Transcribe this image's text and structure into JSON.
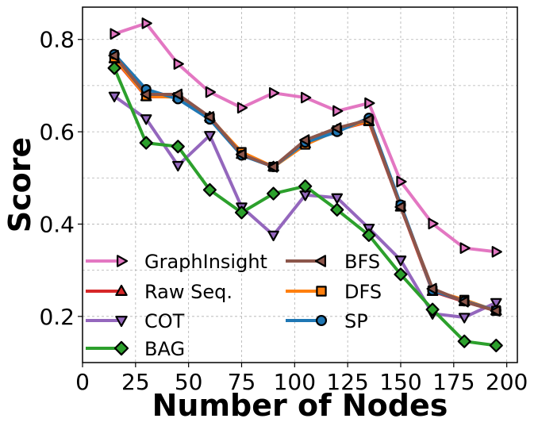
{
  "chart_data": {
    "type": "line",
    "xlabel": "Number of Nodes",
    "ylabel": "Score",
    "xlim": [
      0,
      205
    ],
    "ylim": [
      0.1,
      0.87
    ],
    "xticks": [
      0,
      25,
      50,
      75,
      100,
      125,
      150,
      175,
      200
    ],
    "yticks": [
      0.2,
      0.4,
      0.6,
      0.8
    ],
    "grid": true,
    "legend_position": "bottom-left, two columns",
    "x": [
      15,
      30,
      45,
      60,
      75,
      90,
      105,
      120,
      135,
      150,
      165,
      180,
      195
    ],
    "series": [
      {
        "name": "GraphInsight",
        "color": "#e377c2",
        "marker": "triangle-right",
        "values": [
          0.812,
          0.835,
          0.747,
          0.686,
          0.652,
          0.684,
          0.674,
          0.645,
          0.662,
          0.492,
          0.401,
          0.348,
          0.34
        ]
      },
      {
        "name": "Raw Seq.",
        "color": "#d62728",
        "marker": "triangle-up",
        "values": [
          0.758,
          0.676,
          0.676,
          0.632,
          0.551,
          0.524,
          0.574,
          0.604,
          0.622,
          0.437,
          0.254,
          0.232,
          0.212
        ]
      },
      {
        "name": "COT",
        "color": "#9467bd",
        "marker": "triangle-down",
        "values": [
          0.677,
          0.628,
          0.527,
          0.592,
          0.437,
          0.376,
          0.463,
          0.457,
          0.391,
          0.322,
          0.206,
          0.198,
          0.23
        ]
      },
      {
        "name": "BAG",
        "color": "#2ca02c",
        "marker": "diamond",
        "values": [
          0.738,
          0.576,
          0.568,
          0.474,
          0.425,
          0.466,
          0.482,
          0.431,
          0.376,
          0.291,
          0.215,
          0.146,
          0.137
        ]
      },
      {
        "name": "BFS",
        "color": "#8c564b",
        "marker": "triangle-left",
        "values": [
          0.765,
          0.681,
          0.681,
          0.632,
          0.551,
          0.524,
          0.582,
          0.608,
          0.626,
          0.437,
          0.26,
          0.232,
          0.212
        ]
      },
      {
        "name": "DFS",
        "color": "#ff7f0e",
        "marker": "square",
        "values": [
          0.76,
          0.677,
          0.675,
          0.63,
          0.556,
          0.524,
          0.572,
          0.603,
          0.624,
          0.44,
          0.256,
          0.236,
          0.212
        ]
      },
      {
        "name": "SP",
        "color": "#1f77b4",
        "marker": "circle",
        "values": [
          0.768,
          0.692,
          0.671,
          0.627,
          0.549,
          0.524,
          0.577,
          0.6,
          0.63,
          0.442,
          0.256,
          0.233,
          0.213
        ]
      }
    ]
  }
}
